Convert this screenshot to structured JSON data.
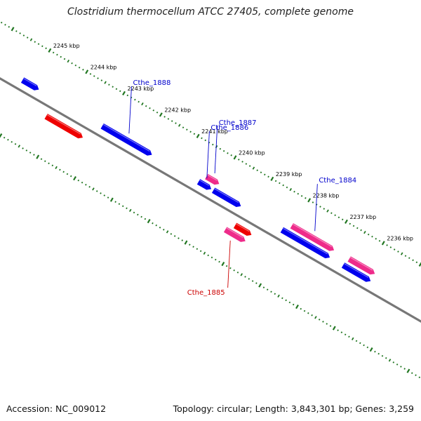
{
  "title": "Clostridium thermocellum ATCC 27405, complete genome",
  "footer": {
    "accession": "Accession: NC_009012",
    "summary": "Topology: circular; Length: 3,843,301 bp; Genes: 3,259"
  },
  "colors": {
    "backbone": "#777777",
    "tick": "#227722",
    "forward_gene": "#0000ee",
    "reverse_gene": "#ee0000",
    "pseudo_gene": "#ee2b8a",
    "label_forward": "#0000cc",
    "label_reverse": "#cc0000"
  },
  "ticks": [
    {
      "kbp": 2245,
      "label": "2245 kbp"
    },
    {
      "kbp": 2244,
      "label": "2244 kbp"
    },
    {
      "kbp": 2243,
      "label": "2243 kbp"
    },
    {
      "kbp": 2242,
      "label": "2242 kbp"
    },
    {
      "kbp": 2241,
      "label": "2241 kbp"
    },
    {
      "kbp": 2240,
      "label": "2240 kbp"
    },
    {
      "kbp": 2239,
      "label": "2239 kbp"
    },
    {
      "kbp": 2238,
      "label": "2238 kbp"
    },
    {
      "kbp": 2237,
      "label": "2237 kbp"
    },
    {
      "kbp": 2236,
      "label": "2236 kbp"
    }
  ],
  "genes": [
    {
      "label": "",
      "strand": "forward",
      "start_kbp": 2245.2,
      "end_kbp": 2244.85
    },
    {
      "label": "",
      "strand": "reverse",
      "start_kbp": 2244.3,
      "end_kbp": 2243.4
    },
    {
      "label": "Cthe_1888",
      "strand": "forward",
      "start_kbp": 2243.05,
      "end_kbp": 2241.8
    },
    {
      "label": "Cthe_1887",
      "strand": "pseudo_outer",
      "start_kbp": 2240.35,
      "end_kbp": 2240.1
    },
    {
      "label": "Cthe_1886",
      "strand": "forward",
      "start_kbp": 2240.45,
      "end_kbp": 2240.2
    },
    {
      "label": "",
      "strand": "forward",
      "start_kbp": 2240.05,
      "end_kbp": 2239.4
    },
    {
      "label": "",
      "strand": "reverse",
      "start_kbp": 2239.2,
      "end_kbp": 2238.85
    },
    {
      "label": "Cthe_1885",
      "strand": "pseudo_inner",
      "start_kbp": 2239.35,
      "end_kbp": 2238.9
    },
    {
      "label": "Cthe_1884",
      "strand": "pseudo_outer",
      "start_kbp": 2238.05,
      "end_kbp": 2237.0
    },
    {
      "label": "",
      "strand": "forward",
      "start_kbp": 2238.2,
      "end_kbp": 2237.0
    },
    {
      "label": "",
      "strand": "pseudo_outer",
      "start_kbp": 2236.5,
      "end_kbp": 2235.9
    },
    {
      "label": "",
      "strand": "forward",
      "start_kbp": 2236.55,
      "end_kbp": 2235.9
    }
  ]
}
